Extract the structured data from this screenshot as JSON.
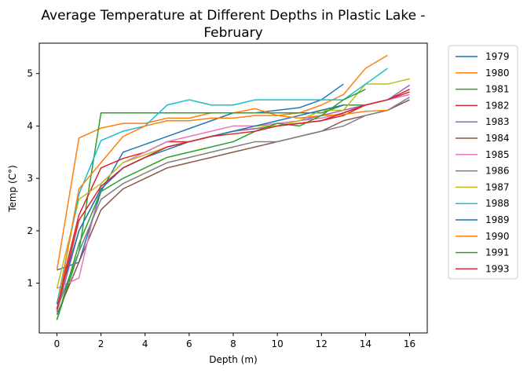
{
  "chart_data": {
    "type": "line",
    "title": "Average Temperature at Different Depths in Plastic Lake - February",
    "title_lines": [
      "Average Temperature at Different Depths in Plastic Lake -",
      "February"
    ],
    "xlabel": "Depth (m)",
    "ylabel": "Temp (C°)",
    "xlim": [
      -0.8,
      16.8
    ],
    "ylim": [
      0.05,
      5.58
    ],
    "xticks": [
      0,
      2,
      4,
      6,
      8,
      10,
      12,
      14,
      16
    ],
    "yticks": [
      1,
      2,
      3,
      4,
      5
    ],
    "grid": false,
    "legend_position": "outside-right",
    "series": [
      {
        "name": "1979",
        "color": "#1f77b4",
        "x": [
          0,
          1,
          2,
          3,
          4,
          5,
          6,
          7,
          8,
          9,
          10,
          11,
          12,
          13
        ],
        "y": [
          1.25,
          1.4,
          2.75,
          3.5,
          3.65,
          3.8,
          3.95,
          4.1,
          4.25,
          4.25,
          4.3,
          4.35,
          4.5,
          4.8
        ]
      },
      {
        "name": "1980",
        "color": "#ff7f0e",
        "x": [
          0,
          1,
          2,
          3,
          4,
          5,
          6,
          7,
          8,
          9,
          10,
          11,
          12,
          13,
          14,
          15
        ],
        "y": [
          1.25,
          3.77,
          3.96,
          4.05,
          4.05,
          4.15,
          4.15,
          4.25,
          4.25,
          4.33,
          4.2,
          4.25,
          4.4,
          4.6,
          5.1,
          5.35
        ]
      },
      {
        "name": "1981",
        "color": "#2ca02c",
        "x": [
          0,
          1,
          2,
          3,
          4,
          5,
          6,
          7,
          8,
          9,
          10,
          11,
          12,
          13,
          14
        ],
        "y": [
          0.3,
          1.6,
          4.25,
          4.25,
          4.25,
          4.25,
          4.25,
          4.25,
          4.25,
          4.25,
          4.25,
          4.25,
          4.25,
          4.4,
          4.4
        ]
      },
      {
        "name": "1982",
        "color": "#d62728",
        "x": [
          0,
          1,
          2,
          3,
          4,
          5,
          6,
          7,
          8,
          9,
          10,
          11,
          12,
          13,
          14,
          15,
          16
        ],
        "y": [
          0.6,
          2.3,
          3.2,
          3.38,
          3.5,
          3.7,
          3.7,
          3.8,
          3.9,
          3.95,
          4.0,
          4.05,
          4.1,
          4.2,
          4.4,
          4.5,
          4.7
        ]
      },
      {
        "name": "1983",
        "color": "#9467bd",
        "x": [
          0,
          1,
          2,
          3,
          4,
          5,
          6,
          7,
          8,
          9,
          10,
          11,
          12,
          13,
          14,
          15,
          16
        ],
        "y": [
          0.45,
          2.0,
          2.8,
          3.2,
          3.4,
          3.6,
          3.7,
          3.8,
          3.9,
          3.95,
          4.0,
          4.1,
          4.2,
          4.3,
          4.4,
          4.5,
          4.78
        ]
      },
      {
        "name": "1984",
        "color": "#8c564b",
        "x": [
          0,
          1,
          2,
          3,
          4,
          5,
          6,
          7,
          8,
          9,
          10,
          11,
          12,
          13,
          14,
          15,
          16
        ],
        "y": [
          0.4,
          1.4,
          2.4,
          2.8,
          3.0,
          3.2,
          3.3,
          3.4,
          3.5,
          3.6,
          3.7,
          3.8,
          3.9,
          4.1,
          4.2,
          4.3,
          4.5
        ]
      },
      {
        "name": "1985",
        "color": "#e377c2",
        "x": [
          0,
          1,
          2,
          3,
          4,
          5,
          6,
          7,
          8,
          9,
          10,
          11,
          12,
          13,
          14,
          15,
          16
        ],
        "y": [
          0.9,
          1.1,
          2.9,
          3.3,
          3.5,
          3.7,
          3.8,
          3.9,
          4.0,
          4.0,
          4.05,
          4.1,
          4.15,
          4.25,
          4.4,
          4.5,
          4.6
        ]
      },
      {
        "name": "1986",
        "color": "#7f7f7f",
        "x": [
          0,
          1,
          2,
          3,
          4,
          5,
          6,
          7,
          8,
          9,
          10,
          11,
          12,
          13,
          14,
          15,
          16
        ],
        "y": [
          0.5,
          1.6,
          2.6,
          2.9,
          3.1,
          3.3,
          3.4,
          3.5,
          3.6,
          3.7,
          3.7,
          3.8,
          3.9,
          4.0,
          4.2,
          4.3,
          4.55
        ]
      },
      {
        "name": "1987",
        "color": "#bcbd22",
        "x": [
          0,
          1,
          2,
          3,
          4,
          5,
          6,
          7,
          8,
          9,
          10,
          11,
          12,
          13,
          14,
          15,
          16
        ],
        "y": [
          0.9,
          2.6,
          2.9,
          3.3,
          3.45,
          3.6,
          3.7,
          3.8,
          3.9,
          4.0,
          4.0,
          4.1,
          4.3,
          4.3,
          4.8,
          4.8,
          4.9
        ]
      },
      {
        "name": "1988",
        "color": "#17becf",
        "x": [
          0,
          1,
          2,
          3,
          4,
          5,
          6,
          7,
          8,
          9,
          10,
          11,
          12,
          13,
          14,
          15
        ],
        "y": [
          0.6,
          2.7,
          3.72,
          3.9,
          4.0,
          4.4,
          4.5,
          4.4,
          4.4,
          4.5,
          4.5,
          4.5,
          4.5,
          4.5,
          4.8,
          5.1
        ]
      },
      {
        "name": "1989",
        "color": "#1f77b4",
        "x": [
          0,
          1,
          2,
          3,
          4,
          5,
          6,
          7,
          8,
          9,
          10,
          11,
          12,
          13
        ],
        "y": [
          0.6,
          2.0,
          2.8,
          3.2,
          3.4,
          3.55,
          3.7,
          3.8,
          3.9,
          4.0,
          4.1,
          4.2,
          4.3,
          4.4
        ]
      },
      {
        "name": "1990",
        "color": "#ff7f0e",
        "x": [
          0,
          1,
          2,
          3,
          4,
          5,
          6,
          7,
          8,
          9,
          10,
          11,
          12,
          13,
          14,
          15
        ],
        "y": [
          0.5,
          2.8,
          3.3,
          3.8,
          4.0,
          4.1,
          4.1,
          4.15,
          4.15,
          4.2,
          4.2,
          4.15,
          4.2,
          4.22,
          4.28,
          4.3
        ]
      },
      {
        "name": "1991",
        "color": "#2ca02c",
        "x": [
          0,
          1,
          2,
          3,
          4,
          5,
          6,
          7,
          8,
          9,
          10,
          11,
          12,
          13,
          14
        ],
        "y": [
          0.3,
          1.75,
          2.75,
          3.0,
          3.2,
          3.4,
          3.5,
          3.6,
          3.7,
          3.9,
          4.05,
          4.0,
          4.2,
          4.5,
          4.7
        ]
      },
      {
        "name": "1993",
        "color": "#d62728",
        "x": [
          0,
          1,
          2,
          3,
          4,
          5,
          6,
          7,
          8,
          9,
          10,
          11,
          12,
          13,
          14,
          15,
          16
        ],
        "y": [
          0.5,
          2.2,
          2.85,
          3.2,
          3.4,
          3.6,
          3.7,
          3.8,
          3.85,
          3.9,
          4.0,
          4.05,
          4.1,
          4.25,
          4.4,
          4.5,
          4.65
        ]
      }
    ]
  }
}
